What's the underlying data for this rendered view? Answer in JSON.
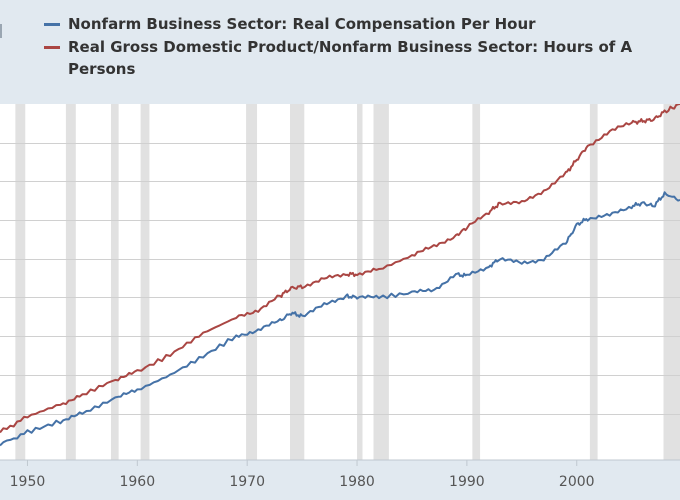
{
  "legend": {
    "items": [
      {
        "label": "Nonfarm Business Sector: Real Compensation Per Hour",
        "color": "#4572a7"
      },
      {
        "label": "Real Gross Domestic Product/Nonfarm Business Sector: Hours of A",
        "label_line2": "Persons",
        "color": "#aa4643"
      }
    ]
  },
  "chart_data": {
    "type": "line",
    "title": "",
    "xlabel": "",
    "ylabel": "",
    "xlim": [
      1947.5,
      2009.4
    ],
    "ylim": [
      0.7,
      3.0
    ],
    "grid": true,
    "legend_position": "top-left",
    "x_ticks": [
      1950,
      1960,
      1970,
      1980,
      1990,
      2000
    ],
    "recessions": [
      [
        1948.9,
        1949.8
      ],
      [
        1953.5,
        1954.4
      ],
      [
        1957.6,
        1958.3
      ],
      [
        1960.3,
        1961.1
      ],
      [
        1969.9,
        1970.9
      ],
      [
        1973.9,
        1975.2
      ],
      [
        1980.0,
        1980.5
      ],
      [
        1981.5,
        1982.9
      ],
      [
        1990.5,
        1991.2
      ],
      [
        2001.2,
        2001.9
      ],
      [
        2007.9,
        2009.4
      ]
    ],
    "series": [
      {
        "name": "Nonfarm Business Sector: Real Compensation Per Hour",
        "color": "#4572a7",
        "x": [
          1947.5,
          1950,
          1953,
          1955,
          1958,
          1960,
          1963,
          1966,
          1969,
          1971,
          1973,
          1974,
          1975,
          1977,
          1979,
          1980,
          1982,
          1985,
          1987,
          1989,
          1990,
          1992,
          1993,
          1995,
          1997,
          1999,
          2000,
          2001,
          2003,
          2005,
          2006,
          2007,
          2008,
          2009.4
        ],
        "y": [
          0.8,
          0.88,
          0.95,
          1.0,
          1.1,
          1.15,
          1.25,
          1.37,
          1.5,
          1.54,
          1.6,
          1.65,
          1.63,
          1.7,
          1.76,
          1.75,
          1.75,
          1.78,
          1.8,
          1.9,
          1.89,
          1.95,
          2.0,
          1.97,
          2.0,
          2.1,
          2.22,
          2.26,
          2.28,
          2.34,
          2.36,
          2.34,
          2.42,
          2.38
        ]
      },
      {
        "name": "Real Gross Domestic Product/Nonfarm Business Sector: Hours of All Persons",
        "color": "#aa4643",
        "x": [
          1947.5,
          1950,
          1953,
          1955,
          1958,
          1960,
          1963,
          1966,
          1969,
          1971,
          1973,
          1974,
          1975,
          1977,
          1979,
          1980,
          1982,
          1985,
          1987,
          1989,
          1990,
          1992,
          1993,
          1995,
          1997,
          1999,
          2000,
          2001,
          2003,
          2005,
          2006,
          2007,
          2008,
          2009.4
        ],
        "y": [
          0.88,
          0.98,
          1.06,
          1.12,
          1.22,
          1.27,
          1.38,
          1.52,
          1.62,
          1.67,
          1.76,
          1.81,
          1.82,
          1.87,
          1.9,
          1.9,
          1.93,
          2.02,
          2.08,
          2.15,
          2.2,
          2.3,
          2.36,
          2.36,
          2.44,
          2.55,
          2.64,
          2.73,
          2.82,
          2.88,
          2.89,
          2.9,
          2.95,
          3.0
        ]
      }
    ]
  }
}
